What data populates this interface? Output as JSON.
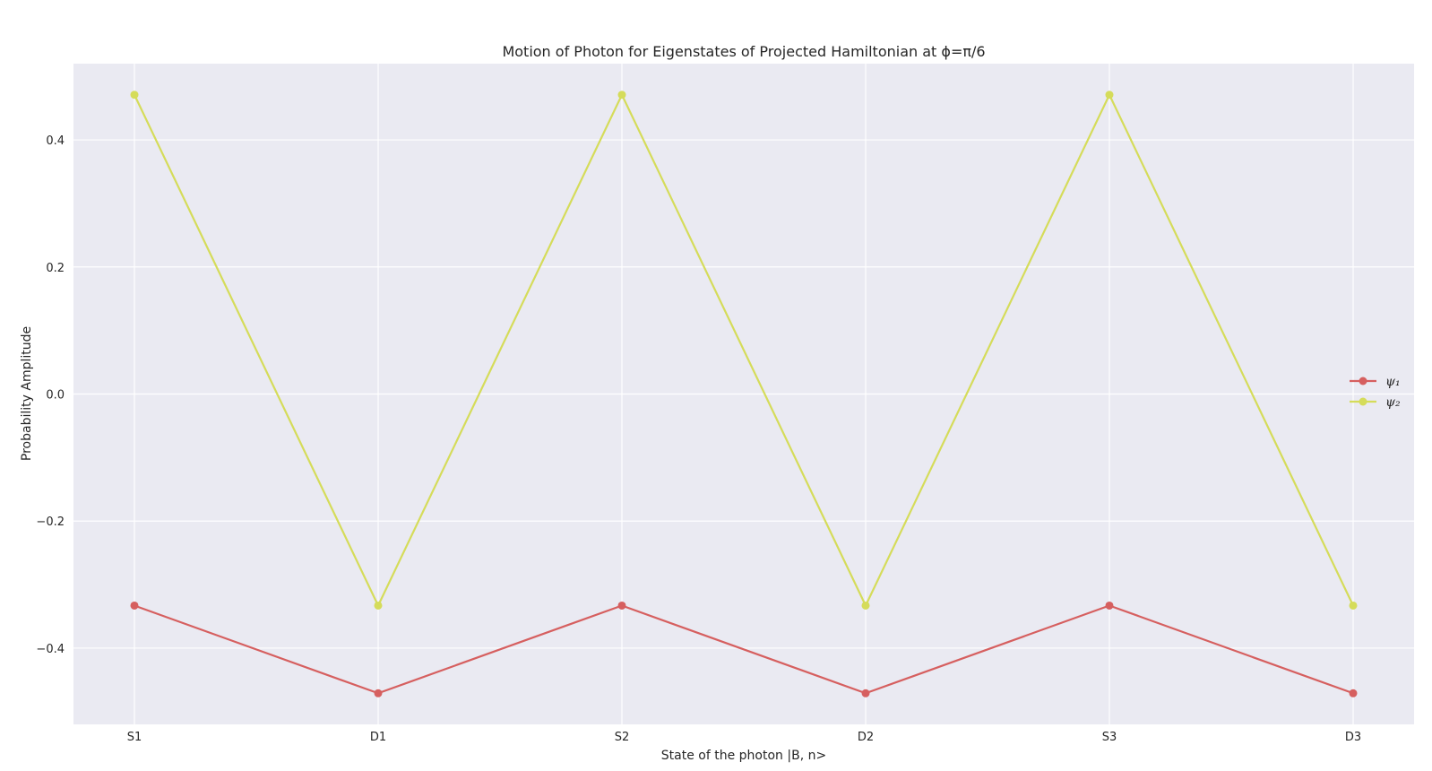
{
  "chart_data": {
    "type": "line",
    "title": "Motion of Photon for Eigenstates of Projected Hamiltonian at ϕ=π/6",
    "xlabel": "State of the photon |B, n>",
    "ylabel": "Probability Amplitude",
    "categories": [
      "S1",
      "D1",
      "S2",
      "D2",
      "S3",
      "D3"
    ],
    "ylim": [
      -0.52,
      0.52
    ],
    "yticks": [
      -0.4,
      -0.2,
      0.0,
      0.2,
      0.4
    ],
    "ytick_labels": [
      "−0.4",
      "−0.2",
      "0.0",
      "0.2",
      "0.4"
    ],
    "grid": true,
    "legend_placement": "center-right",
    "background_color": "#EAEAF2",
    "grid_color": "#FFFFFF",
    "series": [
      {
        "name": "ψ₁",
        "color": "#D65F5F",
        "values": [
          -0.333,
          -0.471,
          -0.333,
          -0.471,
          -0.333,
          -0.471
        ]
      },
      {
        "name": "ψ₂",
        "color": "#D5DC5A",
        "values": [
          0.471,
          -0.333,
          0.471,
          -0.333,
          0.471,
          -0.333
        ]
      }
    ]
  }
}
